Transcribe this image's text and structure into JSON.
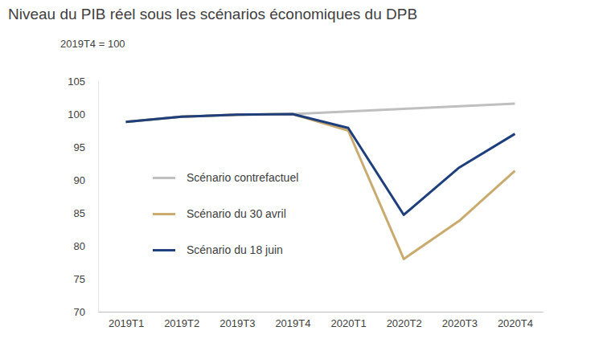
{
  "chart_data": {
    "type": "line",
    "title": "Niveau du PIB réel sous les scénarios économiques du DPB",
    "subtitle": "2019T4 = 100",
    "categories": [
      "2019T1",
      "2019T2",
      "2019T3",
      "2019T4",
      "2020T1",
      "2020T2",
      "2020T3",
      "2020T4"
    ],
    "series": [
      {
        "name": "Scénario contrefactuel",
        "color": "#bfbfbf",
        "values": [
          98.8,
          99.6,
          99.9,
          100,
          100.4,
          100.8,
          101.2,
          101.6
        ]
      },
      {
        "name": "Scénario du 30 avril",
        "color": "#c9aa6f",
        "values": [
          98.8,
          99.6,
          99.9,
          100,
          97.5,
          78,
          83.8,
          91.4
        ]
      },
      {
        "name": "Scénario du 18 juin",
        "color": "#1f3f7c",
        "values": [
          98.8,
          99.6,
          99.9,
          100,
          97.9,
          84.7,
          91.9,
          97.0
        ]
      }
    ],
    "ylim": [
      70,
      105
    ],
    "yticks": [
      70,
      75,
      80,
      85,
      90,
      95,
      100,
      105
    ],
    "grid": false,
    "legend": "left"
  }
}
